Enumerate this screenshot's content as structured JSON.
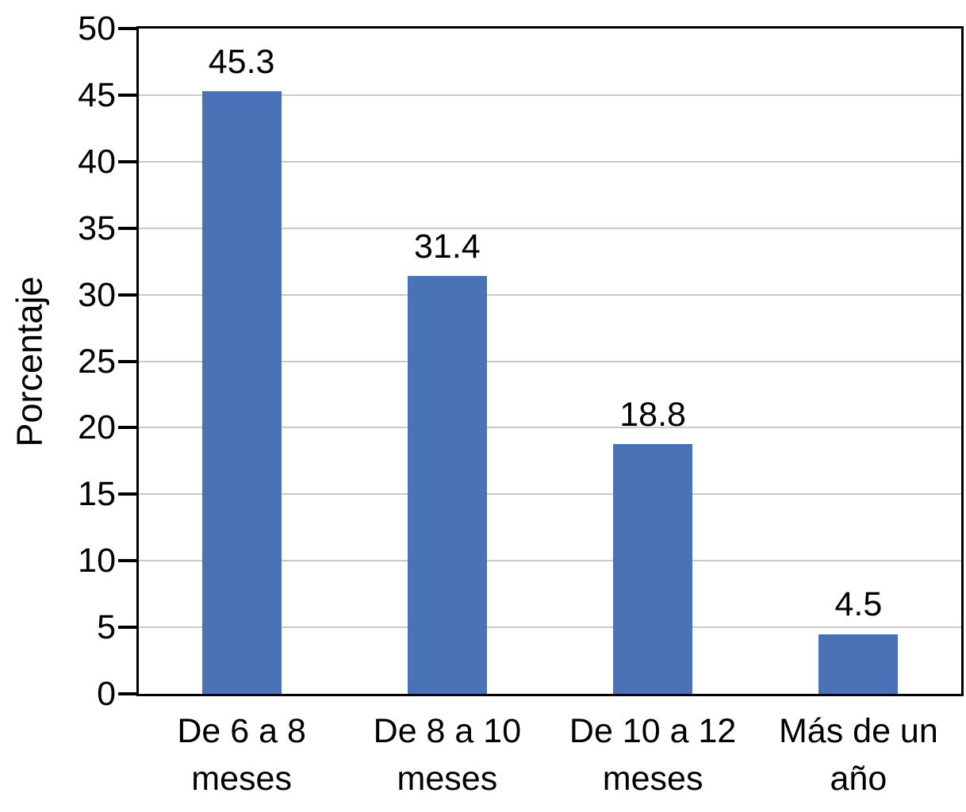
{
  "chart_data": {
    "type": "bar",
    "title": "",
    "categories": [
      "De 6 a 8\nmeses",
      "De 8 a 10\nmeses",
      "De 10 a 12\nmeses",
      "Más de un\naño"
    ],
    "values": [
      45.3,
      31.4,
      18.8,
      4.5
    ],
    "data_labels": [
      "45.3",
      "31.4",
      "18.8",
      "4.5"
    ],
    "xlabel": "",
    "ylabel": "Porcentaje",
    "ylim": [
      0,
      50
    ],
    "yticks": [
      0,
      5,
      10,
      15,
      20,
      25,
      30,
      35,
      40,
      45,
      50
    ],
    "ytick_labels": [
      "0",
      "5",
      "10",
      "15",
      "20",
      "25",
      "30",
      "35",
      "40",
      "45",
      "50"
    ],
    "grid": true,
    "legend": false,
    "bar_color": "#4a73b7",
    "gridline_color": "#c9c9c9",
    "axis_color": "#000000",
    "background_color": "#ffffff"
  }
}
